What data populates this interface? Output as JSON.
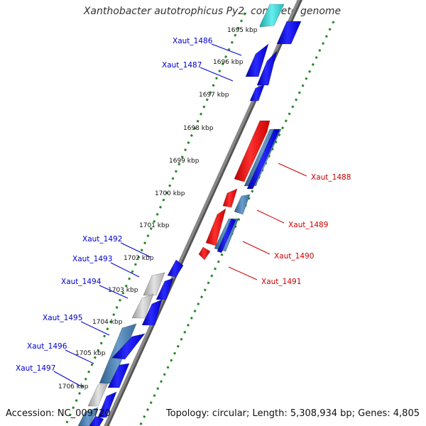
{
  "title": "Xanthobacter autotrophicus Py2, complete genome",
  "footer": {
    "accession": "Accession: NC_009720",
    "stats": "Topology: circular; Length: 5,308,934 bp; Genes: 4,805"
  },
  "kbp_ticks": [
    "1695 kbp",
    "1696 kbp",
    "1697 kbp",
    "1698 kbp",
    "1699 kbp",
    "1700 kbp",
    "1701 kbp",
    "1702 kbp",
    "1703 kbp",
    "1704 kbp",
    "1705 kbp",
    "1706 kbp"
  ],
  "genes_left": [
    "Xaut_1486",
    "Xaut_1487",
    "Xaut_1492",
    "Xaut_1493",
    "Xaut_1494",
    "Xaut_1495",
    "Xaut_1496",
    "Xaut_1497"
  ],
  "genes_right": [
    "Xaut_1488",
    "Xaut_1489",
    "Xaut_1490",
    "Xaut_1491"
  ],
  "colors": {
    "forward_gene": "#0000ee",
    "reverse_gene": "#ee0000",
    "steelblue_gene": "#4a86b8",
    "cyan_gene": "#33cccc",
    "gray_gene": "#bbbbbb",
    "backbone": "#888888",
    "dotted_track": "#228822"
  }
}
